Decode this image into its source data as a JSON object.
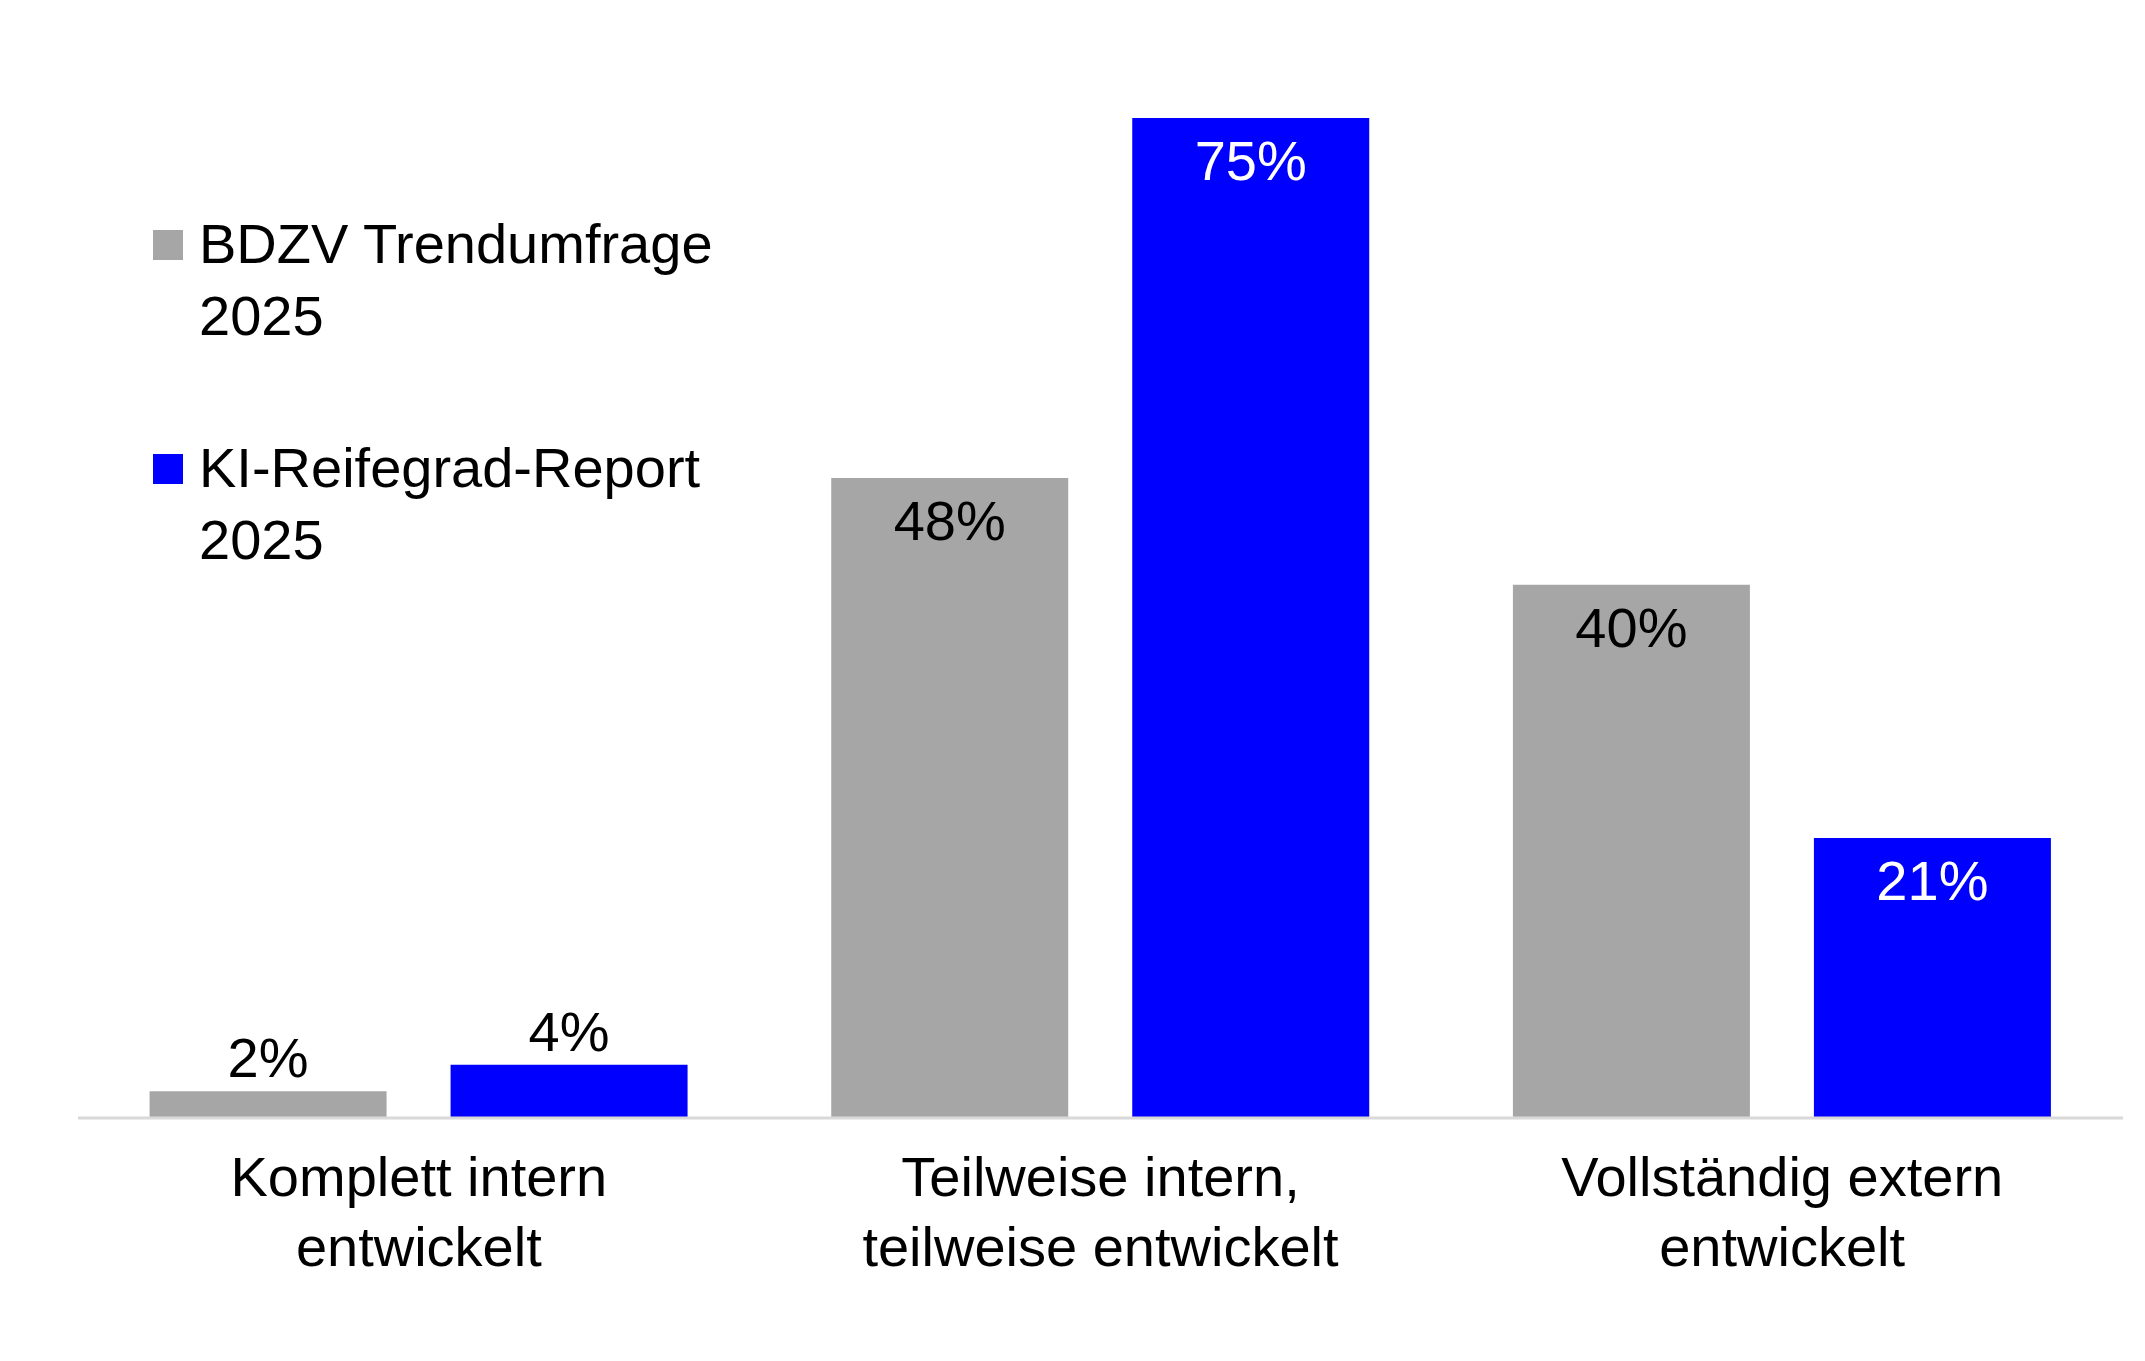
{
  "chart_data": {
    "type": "bar",
    "categories": [
      "Komplett intern entwickelt",
      "Teilweise intern, teilweise entwickelt",
      "Vollständig extern entwickelt"
    ],
    "series": [
      {
        "name": "BDZV Trendumfrage 2025",
        "color": "#a6a6a6",
        "values": [
          2,
          48,
          40
        ],
        "value_labels": [
          "2%",
          "48%",
          "40%"
        ]
      },
      {
        "name": "KI-Reifegrad-Report 2025",
        "color": "#0000ff",
        "values": [
          4,
          75,
          21
        ],
        "value_labels": [
          "4%",
          "75%",
          "21%"
        ]
      }
    ],
    "legend": "top left",
    "grid": false
  }
}
